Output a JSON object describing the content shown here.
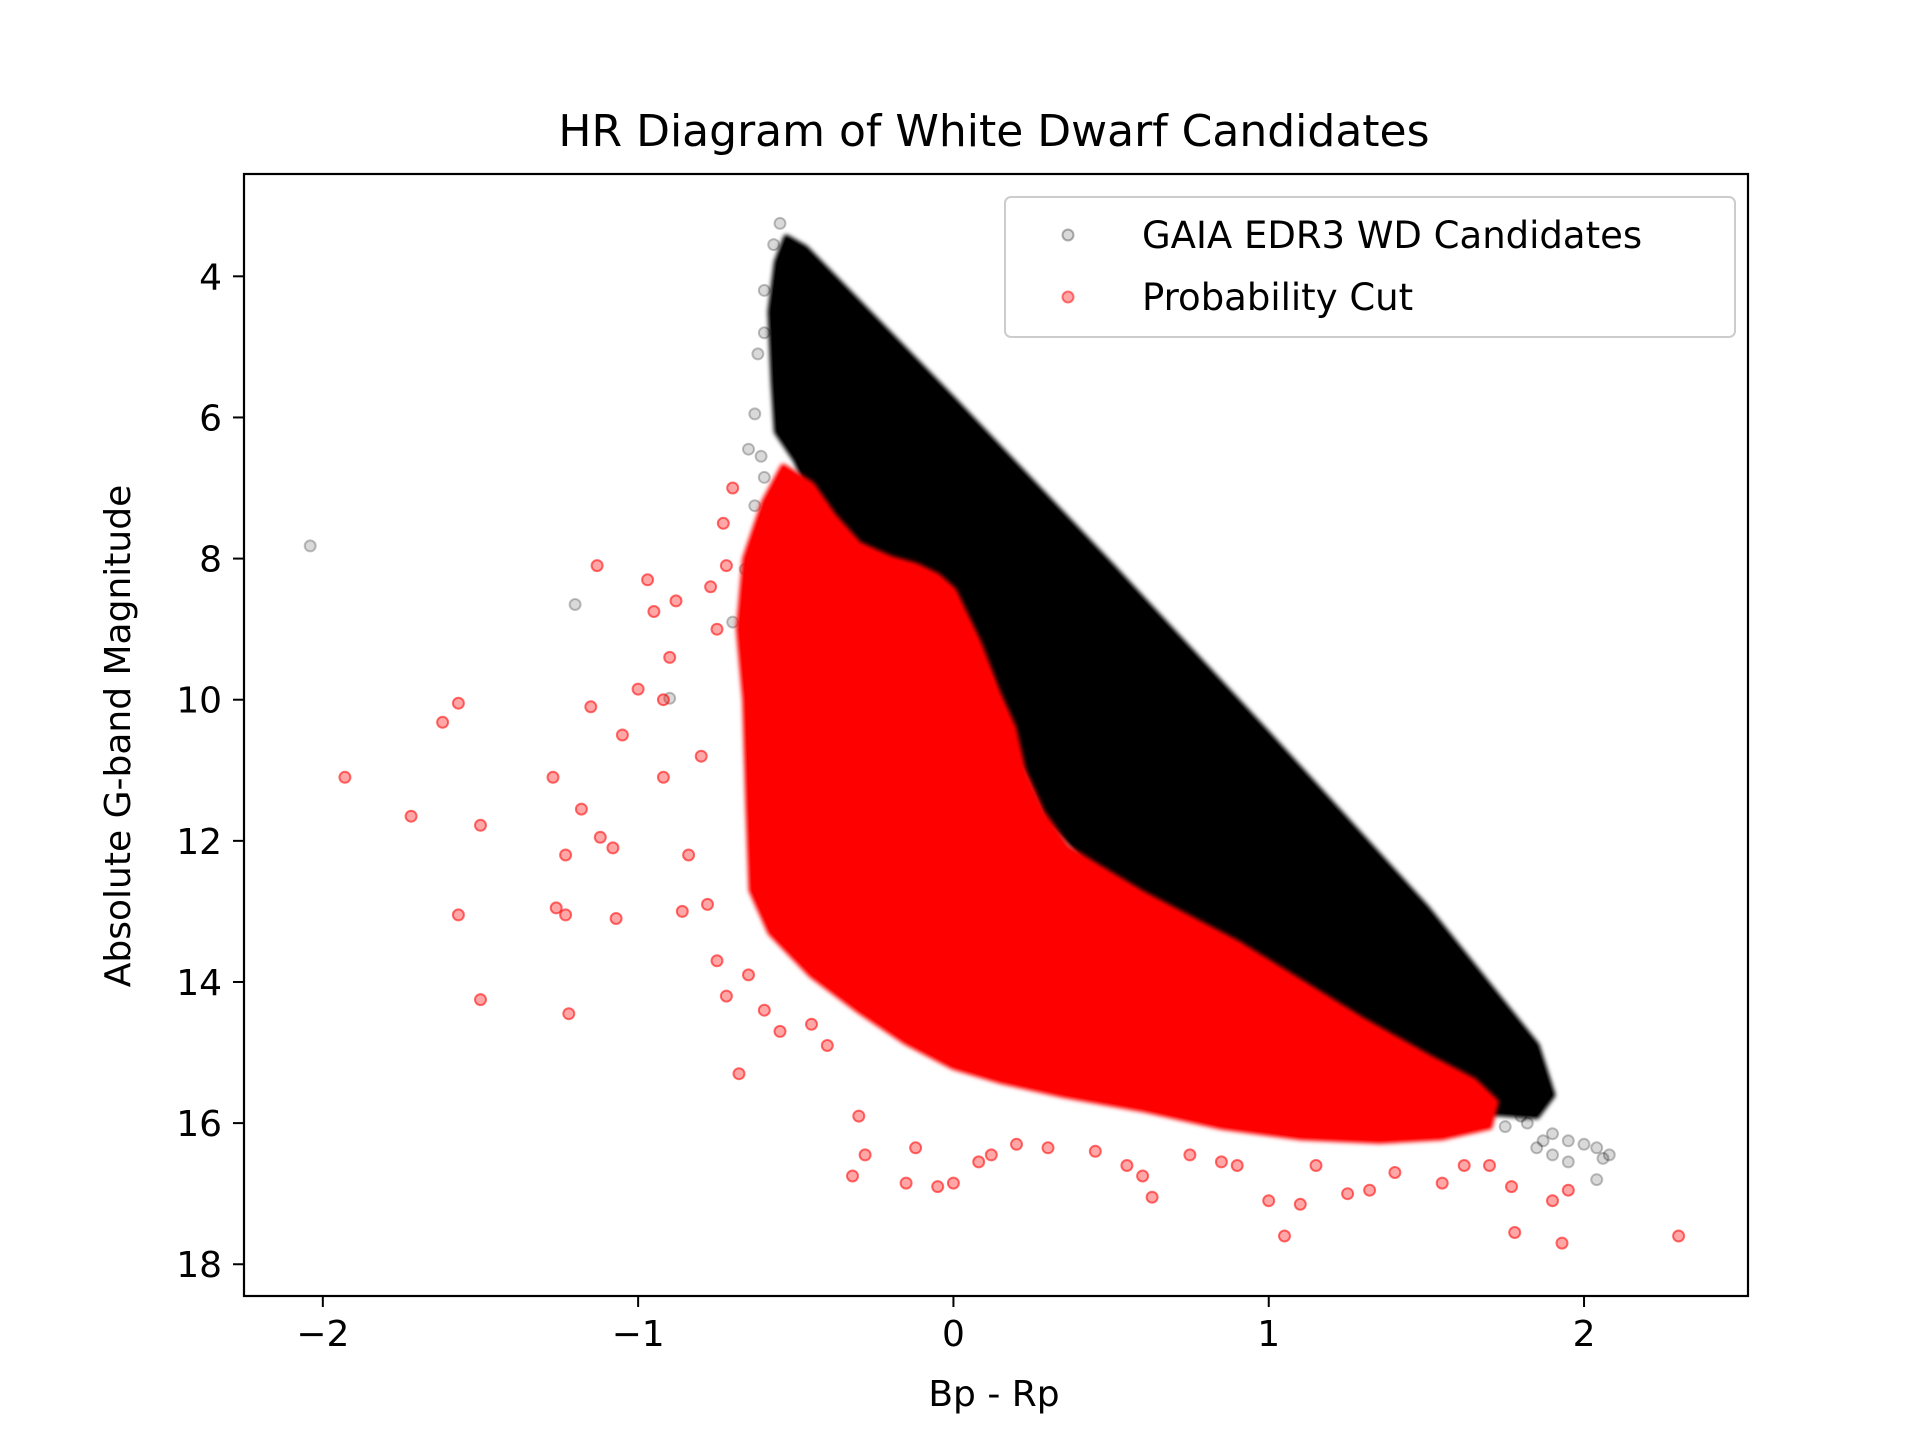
{
  "chart_data": {
    "type": "scatter",
    "title": "HR Diagram of White Dwarf Candidates",
    "xlabel": "Bp - Rp",
    "ylabel": "Absolute G-band Magnitude",
    "xlim": [
      -2.25,
      2.52
    ],
    "ylim": [
      18.45,
      2.55
    ],
    "y_inverted": true,
    "grid": false,
    "legend_position": "top-right",
    "x_ticks": [
      -2,
      -1,
      0,
      1,
      2
    ],
    "x_tick_labels": [
      "−2",
      "−1",
      "0",
      "1",
      "2"
    ],
    "y_ticks": [
      4,
      6,
      8,
      10,
      12,
      14,
      16,
      18
    ],
    "y_tick_labels": [
      "4",
      "6",
      "8",
      "10",
      "12",
      "14",
      "16",
      "18"
    ],
    "series": [
      {
        "name": "GAIA EDR3 WD Candidates",
        "color": "#000000",
        "alpha": 0.15,
        "dense_region_polygon": [
          [
            -0.53,
            3.45
          ],
          [
            -0.47,
            3.6
          ],
          [
            0.0,
            5.75
          ],
          [
            0.5,
            8.1
          ],
          [
            1.0,
            10.5
          ],
          [
            1.5,
            12.95
          ],
          [
            1.85,
            14.9
          ],
          [
            1.9,
            15.6
          ],
          [
            1.85,
            15.9
          ],
          [
            1.7,
            15.85
          ],
          [
            1.5,
            15.6
          ],
          [
            1.2,
            15.1
          ],
          [
            0.9,
            14.15
          ],
          [
            0.6,
            13.05
          ],
          [
            0.45,
            12.4
          ],
          [
            0.3,
            11.7
          ],
          [
            0.22,
            10.9
          ],
          [
            0.12,
            9.6
          ],
          [
            0.0,
            8.7
          ],
          [
            -0.1,
            8.15
          ],
          [
            -0.2,
            8.05
          ],
          [
            -0.35,
            7.7
          ],
          [
            -0.45,
            7.1
          ],
          [
            -0.5,
            6.6
          ],
          [
            -0.56,
            6.2
          ],
          [
            -0.57,
            5.5
          ],
          [
            -0.58,
            4.5
          ],
          [
            -0.56,
            3.8
          ]
        ],
        "outliers": [
          [
            -2.04,
            7.82
          ],
          [
            -1.2,
            8.65
          ],
          [
            -0.9,
            9.98
          ],
          [
            -0.55,
            3.25
          ],
          [
            -0.57,
            3.55
          ],
          [
            -0.6,
            4.2
          ],
          [
            -0.6,
            4.8
          ],
          [
            -0.62,
            5.1
          ],
          [
            -0.63,
            5.95
          ],
          [
            -0.65,
            6.45
          ],
          [
            -0.61,
            6.55
          ],
          [
            -0.6,
            6.85
          ],
          [
            -0.63,
            7.25
          ],
          [
            -0.66,
            8.15
          ],
          [
            -0.7,
            8.9
          ],
          [
            1.82,
            16.0
          ],
          [
            1.87,
            16.25
          ],
          [
            1.9,
            16.45
          ],
          [
            1.95,
            16.25
          ],
          [
            2.0,
            16.3
          ],
          [
            2.04,
            16.35
          ],
          [
            2.06,
            16.5
          ],
          [
            2.08,
            16.45
          ],
          [
            2.04,
            16.8
          ],
          [
            1.95,
            16.55
          ],
          [
            1.9,
            16.15
          ],
          [
            1.85,
            16.35
          ],
          [
            1.75,
            16.05
          ],
          [
            1.8,
            15.9
          ]
        ]
      },
      {
        "name": "Probability Cut",
        "color": "#ff0000",
        "alpha": 0.35,
        "dense_region_polygon": [
          [
            -0.54,
            6.7
          ],
          [
            -0.45,
            6.95
          ],
          [
            -0.38,
            7.4
          ],
          [
            -0.3,
            7.8
          ],
          [
            -0.2,
            8.0
          ],
          [
            -0.12,
            8.1
          ],
          [
            -0.05,
            8.25
          ],
          [
            0.0,
            8.45
          ],
          [
            0.08,
            9.2
          ],
          [
            0.14,
            9.9
          ],
          [
            0.19,
            10.4
          ],
          [
            0.22,
            11.0
          ],
          [
            0.28,
            11.6
          ],
          [
            0.36,
            12.1
          ],
          [
            0.45,
            12.35
          ],
          [
            0.6,
            12.75
          ],
          [
            0.75,
            13.1
          ],
          [
            0.9,
            13.45
          ],
          [
            1.1,
            14.0
          ],
          [
            1.3,
            14.55
          ],
          [
            1.5,
            15.05
          ],
          [
            1.65,
            15.4
          ],
          [
            1.72,
            15.7
          ],
          [
            1.7,
            16.05
          ],
          [
            1.55,
            16.2
          ],
          [
            1.35,
            16.25
          ],
          [
            1.1,
            16.2
          ],
          [
            0.85,
            16.05
          ],
          [
            0.6,
            15.8
          ],
          [
            0.35,
            15.6
          ],
          [
            0.15,
            15.4
          ],
          [
            0.0,
            15.2
          ],
          [
            -0.15,
            14.85
          ],
          [
            -0.3,
            14.4
          ],
          [
            -0.45,
            13.9
          ],
          [
            -0.58,
            13.3
          ],
          [
            -0.64,
            12.7
          ],
          [
            -0.65,
            11.5
          ],
          [
            -0.66,
            10.0
          ],
          [
            -0.68,
            9.0
          ],
          [
            -0.66,
            8.0
          ],
          [
            -0.6,
            7.2
          ]
        ],
        "outliers": [
          [
            -1.93,
            11.1
          ],
          [
            -1.72,
            11.65
          ],
          [
            -1.62,
            10.32
          ],
          [
            -1.57,
            10.05
          ],
          [
            -1.57,
            13.05
          ],
          [
            -1.5,
            11.78
          ],
          [
            -1.5,
            14.25
          ],
          [
            -1.27,
            11.1
          ],
          [
            -1.26,
            12.95
          ],
          [
            -1.23,
            13.05
          ],
          [
            -1.23,
            12.2
          ],
          [
            -1.22,
            14.45
          ],
          [
            -1.13,
            8.1
          ],
          [
            -1.15,
            10.1
          ],
          [
            -1.18,
            11.55
          ],
          [
            -1.12,
            11.95
          ],
          [
            -1.08,
            12.1
          ],
          [
            -1.07,
            13.1
          ],
          [
            -1.05,
            10.5
          ],
          [
            -1.0,
            9.85
          ],
          [
            -0.97,
            8.3
          ],
          [
            -0.95,
            8.75
          ],
          [
            -0.92,
            11.1
          ],
          [
            -0.9,
            9.4
          ],
          [
            -0.92,
            10.0
          ],
          [
            -0.88,
            8.6
          ],
          [
            -0.86,
            13.0
          ],
          [
            -0.84,
            12.2
          ],
          [
            -0.8,
            10.8
          ],
          [
            -0.78,
            12.9
          ],
          [
            -0.75,
            9.0
          ],
          [
            -0.75,
            13.7
          ],
          [
            -0.77,
            8.4
          ],
          [
            -0.72,
            14.2
          ],
          [
            -0.73,
            7.5
          ],
          [
            -0.72,
            8.1
          ],
          [
            -0.7,
            7.0
          ],
          [
            -0.68,
            15.3
          ],
          [
            -0.65,
            13.9
          ],
          [
            -0.6,
            14.4
          ],
          [
            -0.55,
            14.7
          ],
          [
            -0.45,
            14.6
          ],
          [
            -0.4,
            14.9
          ],
          [
            -0.32,
            16.75
          ],
          [
            -0.3,
            15.9
          ],
          [
            -0.28,
            16.45
          ],
          [
            -0.15,
            16.85
          ],
          [
            -0.12,
            16.35
          ],
          [
            -0.05,
            16.9
          ],
          [
            0.0,
            16.85
          ],
          [
            0.08,
            16.55
          ],
          [
            0.12,
            16.45
          ],
          [
            0.2,
            16.3
          ],
          [
            0.3,
            16.35
          ],
          [
            0.45,
            16.4
          ],
          [
            0.55,
            16.6
          ],
          [
            0.6,
            16.75
          ],
          [
            0.63,
            17.05
          ],
          [
            0.75,
            16.45
          ],
          [
            0.85,
            16.55
          ],
          [
            0.9,
            16.6
          ],
          [
            1.0,
            17.1
          ],
          [
            1.05,
            17.6
          ],
          [
            1.1,
            17.15
          ],
          [
            1.15,
            16.6
          ],
          [
            1.25,
            17.0
          ],
          [
            1.32,
            16.95
          ],
          [
            1.4,
            16.7
          ],
          [
            1.55,
            16.85
          ],
          [
            1.62,
            16.6
          ],
          [
            1.7,
            16.6
          ],
          [
            1.77,
            16.9
          ],
          [
            1.78,
            17.55
          ],
          [
            1.9,
            17.1
          ],
          [
            1.93,
            17.7
          ],
          [
            1.95,
            16.95
          ],
          [
            2.3,
            17.6
          ]
        ]
      }
    ]
  }
}
